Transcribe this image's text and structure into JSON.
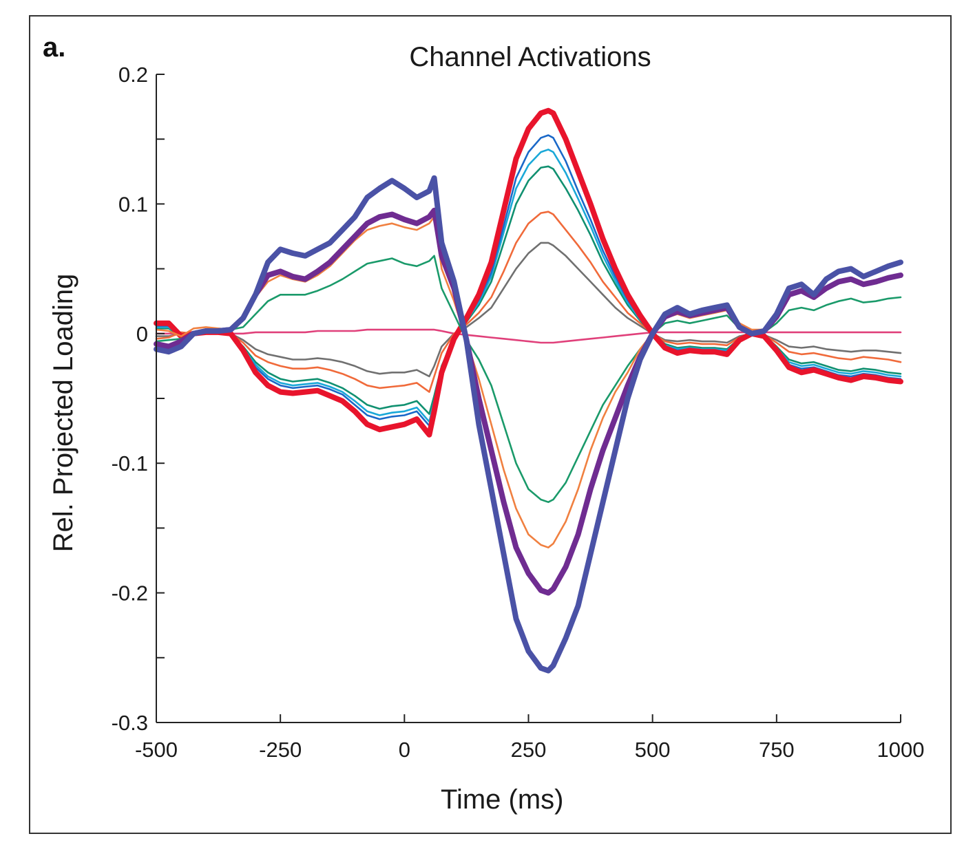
{
  "panel_label": "a.",
  "chart_data": {
    "type": "line",
    "title": "Channel Activations",
    "xlabel": "Time (ms)",
    "ylabel": "Rel. Projected Loading",
    "xlim": [
      -500,
      1000
    ],
    "ylim": [
      -0.3,
      0.2
    ],
    "xticks": [
      -500,
      -250,
      0,
      250,
      500,
      750,
      1000
    ],
    "xtick_labels": [
      "-500",
      "-250",
      "0",
      "250",
      "500",
      "750",
      "1000"
    ],
    "yticks": [
      -0.3,
      -0.2,
      -0.1,
      0,
      0.1,
      0.2
    ],
    "ytick_labels": [
      "-0.3",
      "-0.2",
      "-0.1",
      "0",
      "0.1",
      "0.2"
    ],
    "yminor_ticks": [
      -0.25,
      -0.15,
      -0.05,
      0.05,
      0.15
    ],
    "grid": false,
    "legend": "none",
    "x": [
      -500,
      -475,
      -450,
      -425,
      -400,
      -375,
      -350,
      -325,
      -300,
      -275,
      -250,
      -225,
      -200,
      -175,
      -150,
      -125,
      -100,
      -75,
      -50,
      -25,
      0,
      25,
      50,
      60,
      75,
      100,
      125,
      150,
      175,
      200,
      225,
      250,
      275,
      290,
      300,
      325,
      350,
      375,
      400,
      425,
      450,
      475,
      500,
      525,
      550,
      575,
      600,
      625,
      650,
      675,
      700,
      725,
      750,
      775,
      800,
      825,
      850,
      875,
      900,
      925,
      950,
      975,
      1000
    ],
    "series": [
      {
        "name": "blue-thick",
        "color": "#4A52A6",
        "weight": "thick",
        "values": [
          -0.012,
          -0.014,
          -0.01,
          0.0,
          0.002,
          0.002,
          0.003,
          0.012,
          0.03,
          0.055,
          0.065,
          0.062,
          0.06,
          0.065,
          0.07,
          0.08,
          0.09,
          0.105,
          0.112,
          0.118,
          0.112,
          0.105,
          0.11,
          0.12,
          0.07,
          0.04,
          -0.005,
          -0.07,
          -0.12,
          -0.17,
          -0.22,
          -0.245,
          -0.258,
          -0.26,
          -0.256,
          -0.235,
          -0.21,
          -0.17,
          -0.13,
          -0.09,
          -0.05,
          -0.02,
          0.0,
          0.015,
          0.02,
          0.015,
          0.018,
          0.02,
          0.022,
          0.005,
          0.0,
          0.002,
          0.015,
          0.035,
          0.038,
          0.03,
          0.042,
          0.048,
          0.05,
          0.044,
          0.048,
          0.052,
          0.055
        ]
      },
      {
        "name": "purple-thick",
        "color": "#6F2C91",
        "weight": "thick",
        "values": [
          -0.008,
          -0.01,
          -0.006,
          0.0,
          0.002,
          0.002,
          0.003,
          0.012,
          0.03,
          0.045,
          0.048,
          0.044,
          0.042,
          0.048,
          0.055,
          0.065,
          0.075,
          0.085,
          0.09,
          0.092,
          0.088,
          0.085,
          0.09,
          0.095,
          0.06,
          0.035,
          -0.005,
          -0.05,
          -0.09,
          -0.13,
          -0.165,
          -0.185,
          -0.198,
          -0.2,
          -0.197,
          -0.18,
          -0.155,
          -0.12,
          -0.09,
          -0.065,
          -0.04,
          -0.018,
          0.0,
          0.013,
          0.017,
          0.014,
          0.016,
          0.018,
          0.02,
          0.005,
          0.0,
          0.002,
          0.013,
          0.03,
          0.033,
          0.028,
          0.035,
          0.04,
          0.042,
          0.038,
          0.04,
          0.043,
          0.045
        ]
      },
      {
        "name": "orange-upper",
        "color": "#F08040",
        "weight": "thin",
        "values": [
          0.003,
          0.002,
          -0.002,
          0.004,
          0.005,
          0.004,
          0.003,
          0.01,
          0.028,
          0.04,
          0.045,
          0.042,
          0.04,
          0.045,
          0.052,
          0.062,
          0.072,
          0.08,
          0.083,
          0.085,
          0.082,
          0.08,
          0.085,
          0.09,
          0.05,
          0.025,
          -0.005,
          -0.035,
          -0.07,
          -0.105,
          -0.135,
          -0.155,
          -0.163,
          -0.165,
          -0.162,
          -0.145,
          -0.12,
          -0.09,
          -0.065,
          -0.045,
          -0.03,
          -0.012,
          0.0,
          0.012,
          0.015,
          0.012,
          0.014,
          0.016,
          0.018,
          0.008,
          0.003,
          0.003,
          0.012,
          0.03,
          0.033,
          0.028,
          0.035,
          0.04,
          0.042,
          0.038,
          0.04,
          0.043,
          0.045
        ]
      },
      {
        "name": "green-upper",
        "color": "#1A9A6A",
        "weight": "thin",
        "values": [
          -0.006,
          -0.005,
          -0.004,
          0.0,
          0.002,
          0.002,
          0.003,
          0.005,
          0.015,
          0.025,
          0.03,
          0.03,
          0.03,
          0.033,
          0.037,
          0.042,
          0.048,
          0.054,
          0.056,
          0.058,
          0.054,
          0.052,
          0.056,
          0.06,
          0.035,
          0.015,
          -0.005,
          -0.02,
          -0.04,
          -0.07,
          -0.1,
          -0.12,
          -0.128,
          -0.13,
          -0.128,
          -0.115,
          -0.095,
          -0.075,
          -0.055,
          -0.04,
          -0.025,
          -0.012,
          0.0,
          0.008,
          0.01,
          0.008,
          0.01,
          0.012,
          0.014,
          0.004,
          0.0,
          0.001,
          0.008,
          0.018,
          0.02,
          0.018,
          0.022,
          0.025,
          0.027,
          0.024,
          0.025,
          0.027,
          0.028
        ]
      },
      {
        "name": "magenta",
        "color": "#E0407A",
        "weight": "thin",
        "values": [
          0.0,
          0.0,
          0.0,
          0.0,
          0.0,
          0.0,
          0.0,
          0.0,
          0.001,
          0.001,
          0.001,
          0.001,
          0.001,
          0.002,
          0.002,
          0.002,
          0.002,
          0.003,
          0.003,
          0.003,
          0.003,
          0.003,
          0.003,
          0.003,
          0.002,
          0.0,
          -0.001,
          -0.002,
          -0.003,
          -0.004,
          -0.005,
          -0.006,
          -0.007,
          -0.007,
          -0.007,
          -0.006,
          -0.005,
          -0.004,
          -0.003,
          -0.002,
          -0.001,
          0.0,
          0.001,
          0.001,
          0.001,
          0.001,
          0.001,
          0.001,
          0.001,
          0.001,
          0.001,
          0.001,
          0.001,
          0.001,
          0.001,
          0.001,
          0.001,
          0.001,
          0.001,
          0.001,
          0.001,
          0.001,
          0.001
        ]
      },
      {
        "name": "gray",
        "color": "#707070",
        "weight": "thin",
        "values": [
          -0.002,
          -0.002,
          0.0,
          0.0,
          0.001,
          0.001,
          0.0,
          -0.005,
          -0.012,
          -0.016,
          -0.018,
          -0.02,
          -0.02,
          -0.019,
          -0.02,
          -0.022,
          -0.025,
          -0.029,
          -0.031,
          -0.03,
          -0.03,
          -0.028,
          -0.033,
          -0.025,
          -0.01,
          0.0,
          0.005,
          0.012,
          0.02,
          0.035,
          0.05,
          0.062,
          0.07,
          0.07,
          0.068,
          0.06,
          0.05,
          0.04,
          0.03,
          0.02,
          0.012,
          0.006,
          0.0,
          -0.005,
          -0.006,
          -0.005,
          -0.006,
          -0.006,
          -0.007,
          -0.002,
          0.0,
          -0.001,
          -0.005,
          -0.01,
          -0.011,
          -0.01,
          -0.012,
          -0.013,
          -0.014,
          -0.013,
          -0.013,
          -0.014,
          -0.015
        ]
      },
      {
        "name": "orange-lower",
        "color": "#F06A3A",
        "weight": "thin",
        "values": [
          -0.004,
          -0.003,
          0.001,
          0.0,
          0.001,
          0.001,
          0.0,
          -0.007,
          -0.017,
          -0.022,
          -0.025,
          -0.027,
          -0.027,
          -0.026,
          -0.028,
          -0.031,
          -0.035,
          -0.04,
          -0.042,
          -0.041,
          -0.04,
          -0.038,
          -0.045,
          -0.033,
          -0.015,
          0.0,
          0.007,
          0.016,
          0.028,
          0.048,
          0.07,
          0.085,
          0.093,
          0.094,
          0.092,
          0.08,
          0.068,
          0.055,
          0.04,
          0.028,
          0.016,
          0.008,
          0.0,
          -0.006,
          -0.008,
          -0.007,
          -0.008,
          -0.008,
          -0.009,
          -0.003,
          0.0,
          -0.001,
          -0.007,
          -0.014,
          -0.016,
          -0.015,
          -0.017,
          -0.019,
          -0.02,
          -0.018,
          -0.019,
          -0.02,
          -0.022
        ]
      },
      {
        "name": "green-lower",
        "color": "#109070",
        "weight": "thin",
        "values": [
          0.004,
          0.004,
          -0.002,
          0.0,
          0.001,
          0.001,
          0.0,
          -0.01,
          -0.022,
          -0.03,
          -0.035,
          -0.037,
          -0.036,
          -0.035,
          -0.038,
          -0.042,
          -0.048,
          -0.055,
          -0.058,
          -0.056,
          -0.055,
          -0.052,
          -0.062,
          -0.048,
          -0.025,
          -0.003,
          0.009,
          0.022,
          0.04,
          0.07,
          0.1,
          0.118,
          0.128,
          0.129,
          0.127,
          0.112,
          0.095,
          0.076,
          0.055,
          0.038,
          0.022,
          0.01,
          0.0,
          -0.008,
          -0.011,
          -0.01,
          -0.011,
          -0.011,
          -0.012,
          -0.004,
          0.0,
          -0.001,
          -0.01,
          -0.02,
          -0.023,
          -0.022,
          -0.025,
          -0.028,
          -0.029,
          -0.027,
          -0.028,
          -0.03,
          -0.031
        ]
      },
      {
        "name": "cyan",
        "color": "#1AA8D8",
        "weight": "thin",
        "values": [
          0.005,
          0.005,
          -0.002,
          0.0,
          0.001,
          0.001,
          0.0,
          -0.011,
          -0.024,
          -0.033,
          -0.038,
          -0.04,
          -0.039,
          -0.038,
          -0.041,
          -0.045,
          -0.052,
          -0.06,
          -0.063,
          -0.061,
          -0.06,
          -0.057,
          -0.068,
          -0.052,
          -0.027,
          -0.003,
          0.01,
          0.024,
          0.044,
          0.078,
          0.112,
          0.13,
          0.14,
          0.142,
          0.14,
          0.124,
          0.104,
          0.083,
          0.06,
          0.041,
          0.024,
          0.011,
          0.0,
          -0.009,
          -0.012,
          -0.011,
          -0.012,
          -0.012,
          -0.013,
          -0.004,
          0.0,
          -0.001,
          -0.011,
          -0.022,
          -0.025,
          -0.024,
          -0.027,
          -0.03,
          -0.031,
          -0.029,
          -0.03,
          -0.032,
          -0.033
        ]
      },
      {
        "name": "blue-thin",
        "color": "#1A68C8",
        "weight": "thin",
        "values": [
          0.006,
          0.006,
          -0.002,
          0.0,
          0.001,
          0.001,
          0.0,
          -0.012,
          -0.026,
          -0.035,
          -0.04,
          -0.042,
          -0.041,
          -0.04,
          -0.043,
          -0.047,
          -0.055,
          -0.063,
          -0.066,
          -0.064,
          -0.063,
          -0.06,
          -0.071,
          -0.055,
          -0.028,
          -0.003,
          0.011,
          0.026,
          0.047,
          0.083,
          0.12,
          0.14,
          0.151,
          0.153,
          0.151,
          0.133,
          0.11,
          0.088,
          0.064,
          0.044,
          0.026,
          0.012,
          0.0,
          -0.01,
          -0.013,
          -0.012,
          -0.013,
          -0.013,
          -0.014,
          -0.005,
          0.0,
          -0.001,
          -0.012,
          -0.024,
          -0.027,
          -0.026,
          -0.029,
          -0.032,
          -0.033,
          -0.031,
          -0.032,
          -0.034,
          -0.035
        ]
      },
      {
        "name": "red-thick",
        "color": "#E8142C",
        "weight": "thick",
        "values": [
          0.008,
          0.008,
          -0.002,
          0.0,
          0.001,
          0.001,
          0.0,
          -0.013,
          -0.03,
          -0.04,
          -0.045,
          -0.046,
          -0.045,
          -0.044,
          -0.048,
          -0.052,
          -0.06,
          -0.07,
          -0.074,
          -0.072,
          -0.07,
          -0.066,
          -0.078,
          -0.06,
          -0.03,
          -0.004,
          0.012,
          0.03,
          0.055,
          0.095,
          0.135,
          0.158,
          0.17,
          0.172,
          0.17,
          0.15,
          0.125,
          0.1,
          0.073,
          0.05,
          0.03,
          0.014,
          0.0,
          -0.011,
          -0.015,
          -0.013,
          -0.014,
          -0.014,
          -0.016,
          -0.005,
          0.0,
          -0.002,
          -0.013,
          -0.026,
          -0.03,
          -0.028,
          -0.031,
          -0.034,
          -0.036,
          -0.033,
          -0.034,
          -0.036,
          -0.037
        ]
      }
    ]
  }
}
